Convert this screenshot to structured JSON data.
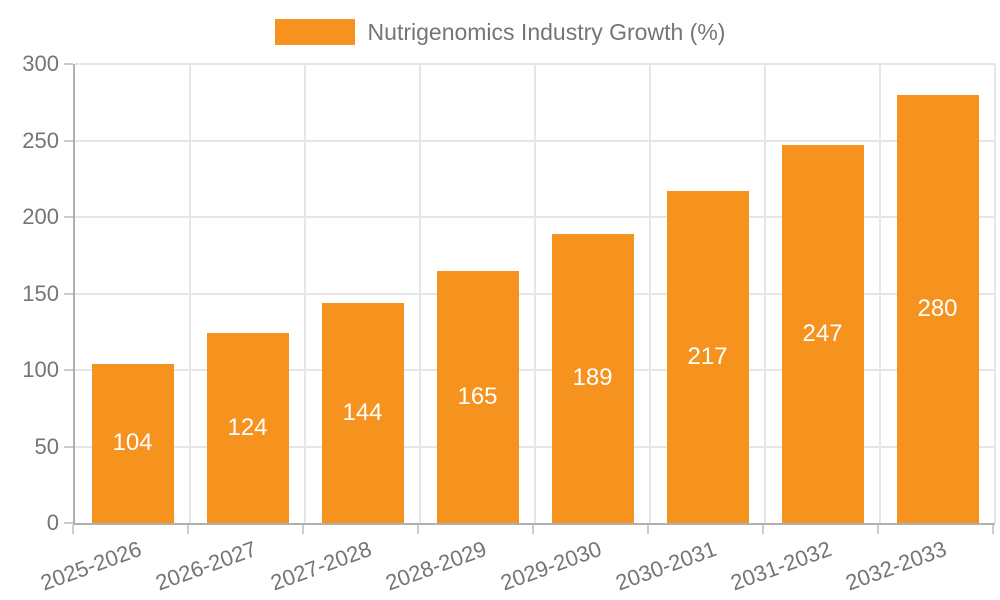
{
  "chart_data": {
    "type": "bar",
    "title": "Nutrigenomics Industry Growth (%)",
    "categories": [
      "2025-2026",
      "2026-2027",
      "2027-2028",
      "2028-2029",
      "2029-2030",
      "2030-2031",
      "2031-2032",
      "2032-2033"
    ],
    "values": [
      104,
      124,
      144,
      165,
      189,
      217,
      247,
      280
    ],
    "xlabel": "",
    "ylabel": "",
    "ylim": [
      0,
      300
    ],
    "yticks": [
      0,
      50,
      100,
      150,
      200,
      250,
      300
    ],
    "grid": true,
    "legend_position": "top",
    "x_label_rotation_deg": -20,
    "colors": {
      "bar": "#F6921E",
      "bar_value_text": "#FFFFFF",
      "axis_text": "#757575",
      "axis_line": "#B0B0B0",
      "gridline": "#E6E6E6",
      "tick": "#CCCCCC",
      "background": "#FFFFFF"
    }
  }
}
